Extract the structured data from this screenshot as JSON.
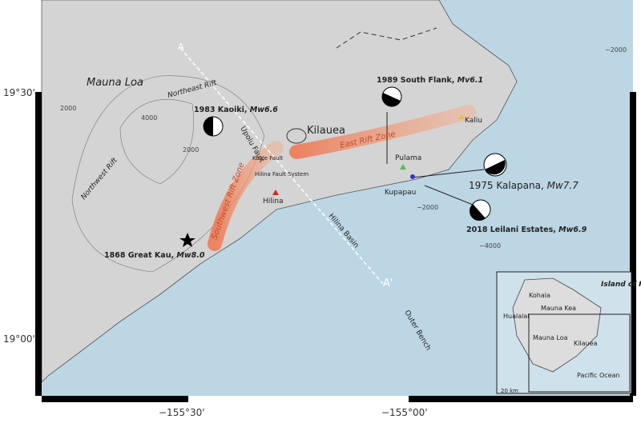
{
  "axes": {
    "lat": [
      "19°30'",
      "19°00'"
    ],
    "lon": [
      "−155°30'",
      "−155°00'"
    ]
  },
  "features": {
    "mauna_loa": "Mauna Loa",
    "northeast_rift": "Northeast Rift",
    "northwest_rift": "Northwest Rift",
    "kilauea": "Kilauea",
    "upolu_fault": "Upolu Fault",
    "koae": "Koa'e Fault",
    "hilina_fs": "Hilina Fault System",
    "hilina": "Hilina",
    "southwest_rz": "Southwest Rift Zone",
    "east_rz": "East Rift Zone",
    "kaliu": "Kaliu",
    "pulama": "Pulama",
    "kupapau": "Kupapau",
    "hilina_basin": "Hilina Basin",
    "outer_bench": "Outer Bench",
    "a": "A",
    "a_prime": "A'"
  },
  "contours": [
    "2000",
    "2000",
    "4000",
    "−2000",
    "−2000",
    "−4000"
  ],
  "events": [
    {
      "place": "1983 Kaoiki, ",
      "magnitude": "Mw6.6"
    },
    {
      "place": "1989 South Flank, ",
      "magnitude": "Mv6.1"
    },
    {
      "place": "1975 Kalapana, ",
      "magnitude": "Mw7.7"
    },
    {
      "place": "2018 Leilani Estates, ",
      "magnitude": "Mw6.9"
    },
    {
      "place": "1868 Great Kau, ",
      "magnitude": "Mw8.0"
    }
  ],
  "inset": {
    "title": "Island of Hawai'i",
    "kohala": "Kohala",
    "mauna_kea": "Mauna Kea",
    "hualalai": "Hualalai",
    "mauna_loa": "Mauna Loa",
    "kilauea": "Kilauea",
    "ocean": "Pacific Ocean",
    "scale": "20 km"
  }
}
